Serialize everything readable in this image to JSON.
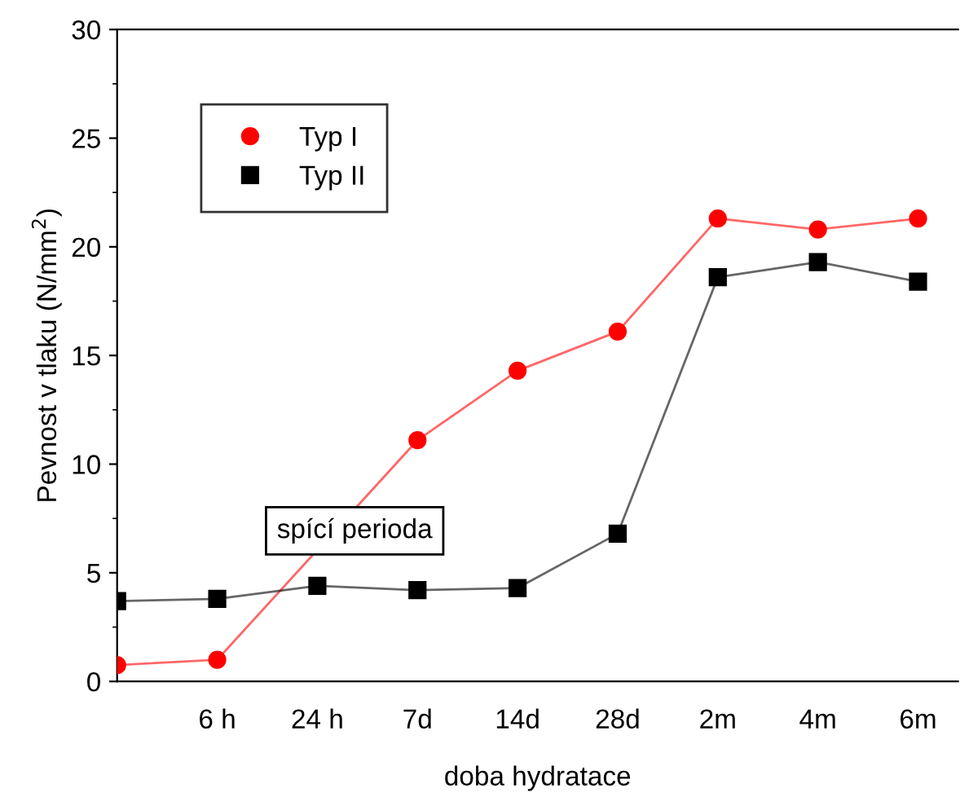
{
  "chart_data": {
    "type": "line",
    "xlabel": "doba hydratace",
    "ylabel": "Pevnost v tlaku (N/mm$^{2}$)",
    "ylim": [
      0,
      30
    ],
    "yticks": [
      0,
      5,
      10,
      15,
      20,
      25,
      30
    ],
    "categories": [
      null,
      "6 h",
      "24 h",
      "7d",
      "14d",
      "28d",
      "2m",
      "4m",
      "6m"
    ],
    "series": [
      {
        "name": "Typ I",
        "color": "#ff0000",
        "marker": "circle",
        "values": [
          0.75,
          1.0,
          null,
          11.1,
          14.3,
          16.1,
          21.3,
          20.8,
          21.3
        ]
      },
      {
        "name": "Typ II",
        "color": "#000000",
        "marker": "square",
        "values": [
          3.7,
          3.8,
          4.4,
          4.2,
          4.3,
          6.8,
          18.6,
          19.3,
          18.4
        ]
      }
    ],
    "annotations": [
      "spící perioda"
    ],
    "legend": "top left",
    "grid": false
  }
}
